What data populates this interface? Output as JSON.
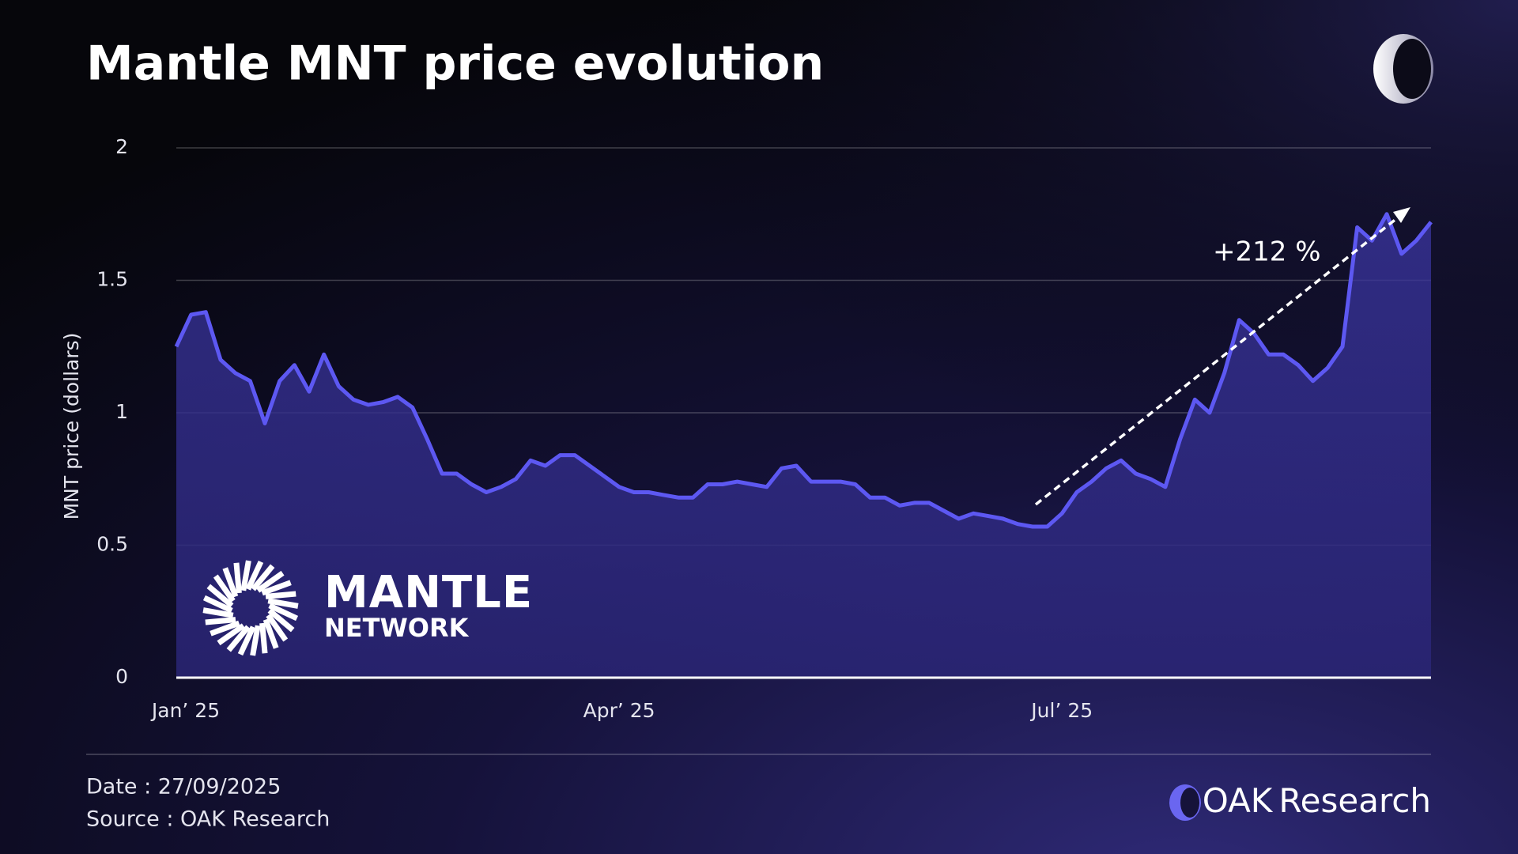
{
  "chart_data": {
    "type": "line",
    "title": "Mantle MNT price evolution",
    "y_label": "MNT price (dollars)",
    "annotation": "+212 %",
    "color": "#5d58f2",
    "area": true,
    "grid": true,
    "ylim": [
      0,
      2
    ],
    "yticks": [
      0,
      0.5,
      1,
      1.5,
      2
    ],
    "categories": [
      "Jan’ 25",
      null,
      null,
      null,
      null,
      null,
      null,
      null,
      null,
      null,
      null,
      null,
      null,
      null,
      null,
      null,
      null,
      null,
      null,
      null,
      null,
      null,
      null,
      null,
      null,
      null,
      null,
      null,
      null,
      null,
      "Apr’ 25",
      null,
      null,
      null,
      null,
      null,
      null,
      null,
      null,
      null,
      null,
      null,
      null,
      null,
      null,
      null,
      null,
      null,
      null,
      null,
      null,
      null,
      null,
      null,
      null,
      null,
      null,
      null,
      null,
      null,
      "Jul’ 25",
      null,
      null,
      null,
      null,
      null,
      null,
      null,
      null,
      null,
      null,
      null,
      null,
      null,
      null,
      null,
      null,
      null,
      null,
      null,
      null,
      null,
      null,
      null,
      null,
      null
    ],
    "values": [
      1.25,
      1.37,
      1.38,
      1.2,
      1.15,
      1.12,
      0.96,
      1.12,
      1.18,
      1.08,
      1.22,
      1.1,
      1.05,
      1.03,
      1.04,
      1.06,
      1.02,
      0.9,
      0.77,
      0.77,
      0.73,
      0.7,
      0.72,
      0.75,
      0.82,
      0.8,
      0.84,
      0.84,
      0.8,
      0.76,
      0.72,
      0.7,
      0.7,
      0.69,
      0.68,
      0.68,
      0.73,
      0.73,
      0.74,
      0.73,
      0.72,
      0.79,
      0.8,
      0.74,
      0.74,
      0.74,
      0.73,
      0.68,
      0.68,
      0.65,
      0.66,
      0.66,
      0.63,
      0.6,
      0.62,
      0.61,
      0.6,
      0.58,
      0.57,
      0.57,
      0.62,
      0.7,
      0.74,
      0.79,
      0.82,
      0.77,
      0.75,
      0.72,
      0.9,
      1.05,
      1.0,
      1.15,
      1.35,
      1.3,
      1.22,
      1.22,
      1.18,
      1.12,
      1.17,
      1.25,
      1.7,
      1.65,
      1.75,
      1.6,
      1.65,
      1.72
    ]
  },
  "logo": {
    "name": "MANTLE",
    "subname": "NETWORK"
  },
  "footer": {
    "date": "Date : 27/09/2025",
    "source": "Source : OAK Research",
    "brand_a": "OAK",
    "brand_b": "Research"
  }
}
